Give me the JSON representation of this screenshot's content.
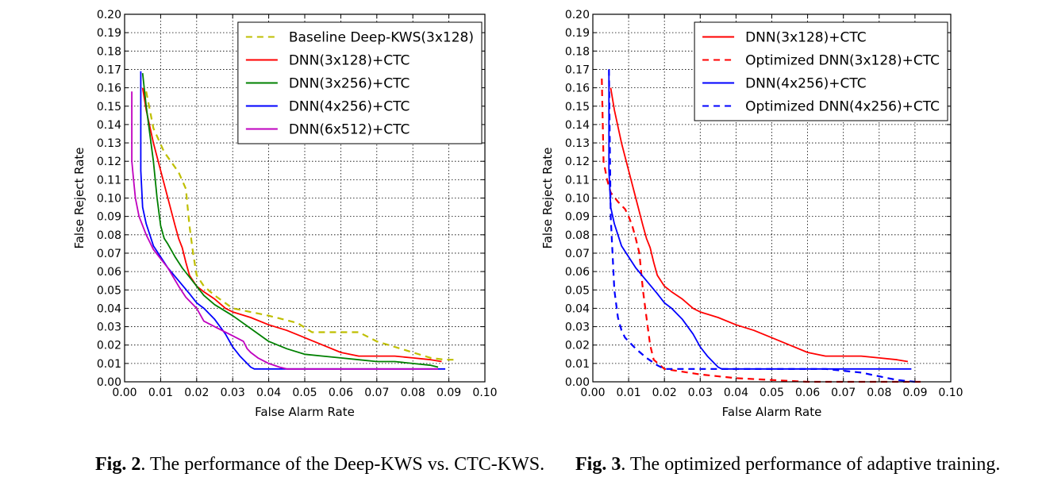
{
  "captions": [
    {
      "label": "Fig. 2",
      "text": ". The performance of the Deep-KWS vs. CTC-KWS."
    },
    {
      "label": "Fig. 3",
      "text": ". The optimized performance of adaptive training."
    }
  ],
  "chart_data": [
    {
      "type": "line",
      "title": "",
      "xlabel": "False Alarm Rate",
      "ylabel": "False Reject Rate",
      "xlim": [
        0,
        0.1
      ],
      "ylim": [
        0,
        0.2
      ],
      "xticks": [
        "0.00",
        "0.01",
        "0.02",
        "0.03",
        "0.04",
        "0.05",
        "0.06",
        "0.07",
        "0.08",
        "0.09",
        "0.10"
      ],
      "yticks": [
        "0.00",
        "0.01",
        "0.02",
        "0.03",
        "0.04",
        "0.05",
        "0.06",
        "0.07",
        "0.08",
        "0.09",
        "0.10",
        "0.11",
        "0.12",
        "0.13",
        "0.14",
        "0.15",
        "0.16",
        "0.17",
        "0.18",
        "0.19",
        "0.20"
      ],
      "grid": true,
      "legend_position": "top-right",
      "series": [
        {
          "name": "Baseline Deep-KWS(3x128)",
          "color": "#bfbf00",
          "dash": "dashed",
          "x": [
            0.006,
            0.008,
            0.011,
            0.015,
            0.017,
            0.018,
            0.019,
            0.02,
            0.022,
            0.025,
            0.03,
            0.04,
            0.048,
            0.052,
            0.056,
            0.06,
            0.065,
            0.07,
            0.08,
            0.085,
            0.089,
            0.092
          ],
          "y": [
            0.158,
            0.138,
            0.125,
            0.114,
            0.105,
            0.085,
            0.07,
            0.058,
            0.052,
            0.047,
            0.04,
            0.036,
            0.032,
            0.027,
            0.027,
            0.027,
            0.027,
            0.022,
            0.016,
            0.013,
            0.012,
            0.012
          ]
        },
        {
          "name": "DNN(3x128)+CTC",
          "color": "#ff0000",
          "dash": "solid",
          "x": [
            0.005,
            0.006,
            0.008,
            0.01,
            0.012,
            0.014,
            0.015,
            0.016,
            0.017,
            0.018,
            0.02,
            0.022,
            0.025,
            0.028,
            0.03,
            0.035,
            0.04,
            0.045,
            0.05,
            0.055,
            0.06,
            0.065,
            0.07,
            0.075,
            0.08,
            0.085,
            0.088
          ],
          "y": [
            0.16,
            0.148,
            0.13,
            0.115,
            0.1,
            0.085,
            0.078,
            0.073,
            0.065,
            0.058,
            0.052,
            0.049,
            0.045,
            0.04,
            0.038,
            0.035,
            0.031,
            0.028,
            0.024,
            0.02,
            0.016,
            0.014,
            0.014,
            0.014,
            0.013,
            0.012,
            0.011
          ]
        },
        {
          "name": "DNN(3x256)+CTC",
          "color": "#008000",
          "dash": "solid",
          "x": [
            0.005,
            0.006,
            0.008,
            0.009,
            0.01,
            0.011,
            0.012,
            0.014,
            0.016,
            0.018,
            0.02,
            0.022,
            0.025,
            0.03,
            0.035,
            0.04,
            0.045,
            0.05,
            0.055,
            0.06,
            0.065,
            0.07,
            0.075,
            0.08,
            0.085,
            0.087
          ],
          "y": [
            0.168,
            0.15,
            0.12,
            0.1,
            0.085,
            0.078,
            0.075,
            0.068,
            0.062,
            0.057,
            0.052,
            0.047,
            0.042,
            0.036,
            0.029,
            0.022,
            0.018,
            0.015,
            0.014,
            0.013,
            0.012,
            0.011,
            0.011,
            0.01,
            0.009,
            0.008
          ]
        },
        {
          "name": "DNN(4x256)+CTC",
          "color": "#0000ff",
          "dash": "solid",
          "x": [
            0.0045,
            0.0045,
            0.005,
            0.006,
            0.007,
            0.008,
            0.01,
            0.012,
            0.015,
            0.018,
            0.02,
            0.022,
            0.025,
            0.028,
            0.03,
            0.032,
            0.034,
            0.035,
            0.036,
            0.038,
            0.04,
            0.05,
            0.06,
            0.07,
            0.08,
            0.089
          ],
          "y": [
            0.169,
            0.115,
            0.095,
            0.086,
            0.08,
            0.074,
            0.068,
            0.062,
            0.055,
            0.048,
            0.043,
            0.04,
            0.034,
            0.026,
            0.019,
            0.014,
            0.01,
            0.008,
            0.007,
            0.007,
            0.007,
            0.007,
            0.007,
            0.007,
            0.007,
            0.007
          ]
        },
        {
          "name": "DNN(6x512)+CTC",
          "color": "#bf00bf",
          "dash": "solid",
          "x": [
            0.002,
            0.002,
            0.0025,
            0.003,
            0.004,
            0.005,
            0.006,
            0.007,
            0.008,
            0.01,
            0.012,
            0.015,
            0.017,
            0.02,
            0.022,
            0.025,
            0.03,
            0.033,
            0.034,
            0.035,
            0.037,
            0.04,
            0.043,
            0.045,
            0.05,
            0.06,
            0.07,
            0.08,
            0.087
          ],
          "y": [
            0.158,
            0.12,
            0.11,
            0.1,
            0.09,
            0.085,
            0.08,
            0.076,
            0.072,
            0.067,
            0.062,
            0.052,
            0.046,
            0.04,
            0.033,
            0.03,
            0.025,
            0.022,
            0.018,
            0.016,
            0.013,
            0.01,
            0.008,
            0.007,
            0.007,
            0.007,
            0.007,
            0.007,
            0.007
          ]
        }
      ]
    },
    {
      "type": "line",
      "title": "",
      "xlabel": "False Alarm Rate",
      "ylabel": "False Reject Rate",
      "xlim": [
        0,
        0.1
      ],
      "ylim": [
        0,
        0.2
      ],
      "xticks": [
        "0.00",
        "0.01",
        "0.02",
        "0.03",
        "0.04",
        "0.05",
        "0.06",
        "0.07",
        "0.08",
        "0.09",
        "0.10"
      ],
      "yticks": [
        "0.00",
        "0.01",
        "0.02",
        "0.03",
        "0.04",
        "0.05",
        "0.06",
        "0.07",
        "0.08",
        "0.09",
        "0.10",
        "0.11",
        "0.12",
        "0.13",
        "0.14",
        "0.15",
        "0.16",
        "0.17",
        "0.18",
        "0.19",
        "0.20"
      ],
      "grid": true,
      "legend_position": "top-right",
      "series": [
        {
          "name": "DNN(3x128)+CTC",
          "color": "#ff0000",
          "dash": "solid",
          "x": [
            0.005,
            0.006,
            0.008,
            0.01,
            0.012,
            0.014,
            0.015,
            0.016,
            0.017,
            0.018,
            0.02,
            0.022,
            0.025,
            0.028,
            0.03,
            0.035,
            0.04,
            0.045,
            0.05,
            0.055,
            0.06,
            0.065,
            0.07,
            0.075,
            0.08,
            0.085,
            0.088
          ],
          "y": [
            0.16,
            0.148,
            0.13,
            0.115,
            0.1,
            0.085,
            0.078,
            0.073,
            0.065,
            0.058,
            0.052,
            0.049,
            0.045,
            0.04,
            0.038,
            0.035,
            0.031,
            0.028,
            0.024,
            0.02,
            0.016,
            0.014,
            0.014,
            0.014,
            0.013,
            0.012,
            0.011
          ]
        },
        {
          "name": "Optimized DNN(3x128)+CTC",
          "color": "#ff0000",
          "dash": "dashed",
          "x": [
            0.0025,
            0.003,
            0.004,
            0.005,
            0.007,
            0.009,
            0.01,
            0.011,
            0.012,
            0.013,
            0.014,
            0.015,
            0.016,
            0.017,
            0.02,
            0.03,
            0.04,
            0.05,
            0.06,
            0.07,
            0.08,
            0.09,
            0.092
          ],
          "y": [
            0.165,
            0.12,
            0.11,
            0.103,
            0.098,
            0.094,
            0.09,
            0.085,
            0.078,
            0.07,
            0.05,
            0.035,
            0.02,
            0.012,
            0.007,
            0.004,
            0.002,
            0.001,
            0.0,
            0.0,
            0.0,
            0.0,
            0.0
          ]
        },
        {
          "name": "DNN(4x256)+CTC",
          "color": "#0000ff",
          "dash": "solid",
          "x": [
            0.0045,
            0.0045,
            0.005,
            0.006,
            0.007,
            0.008,
            0.01,
            0.012,
            0.015,
            0.018,
            0.02,
            0.022,
            0.025,
            0.028,
            0.03,
            0.032,
            0.034,
            0.035,
            0.036,
            0.038,
            0.04,
            0.05,
            0.06,
            0.07,
            0.08,
            0.089
          ],
          "y": [
            0.169,
            0.115,
            0.095,
            0.086,
            0.08,
            0.074,
            0.068,
            0.062,
            0.055,
            0.048,
            0.043,
            0.04,
            0.034,
            0.026,
            0.019,
            0.014,
            0.01,
            0.008,
            0.007,
            0.007,
            0.007,
            0.007,
            0.007,
            0.007,
            0.007,
            0.007
          ]
        },
        {
          "name": "Optimized DNN(4x256)+CTC",
          "color": "#0000ff",
          "dash": "dashed",
          "x": [
            0.0045,
            0.005,
            0.006,
            0.007,
            0.008,
            0.009,
            0.01,
            0.012,
            0.015,
            0.018,
            0.02,
            0.03,
            0.04,
            0.05,
            0.06,
            0.065,
            0.07,
            0.075,
            0.08,
            0.085,
            0.09
          ],
          "y": [
            0.17,
            0.09,
            0.05,
            0.035,
            0.028,
            0.024,
            0.022,
            0.018,
            0.013,
            0.009,
            0.007,
            0.007,
            0.007,
            0.007,
            0.007,
            0.007,
            0.006,
            0.005,
            0.003,
            0.001,
            0.0
          ]
        }
      ]
    }
  ]
}
